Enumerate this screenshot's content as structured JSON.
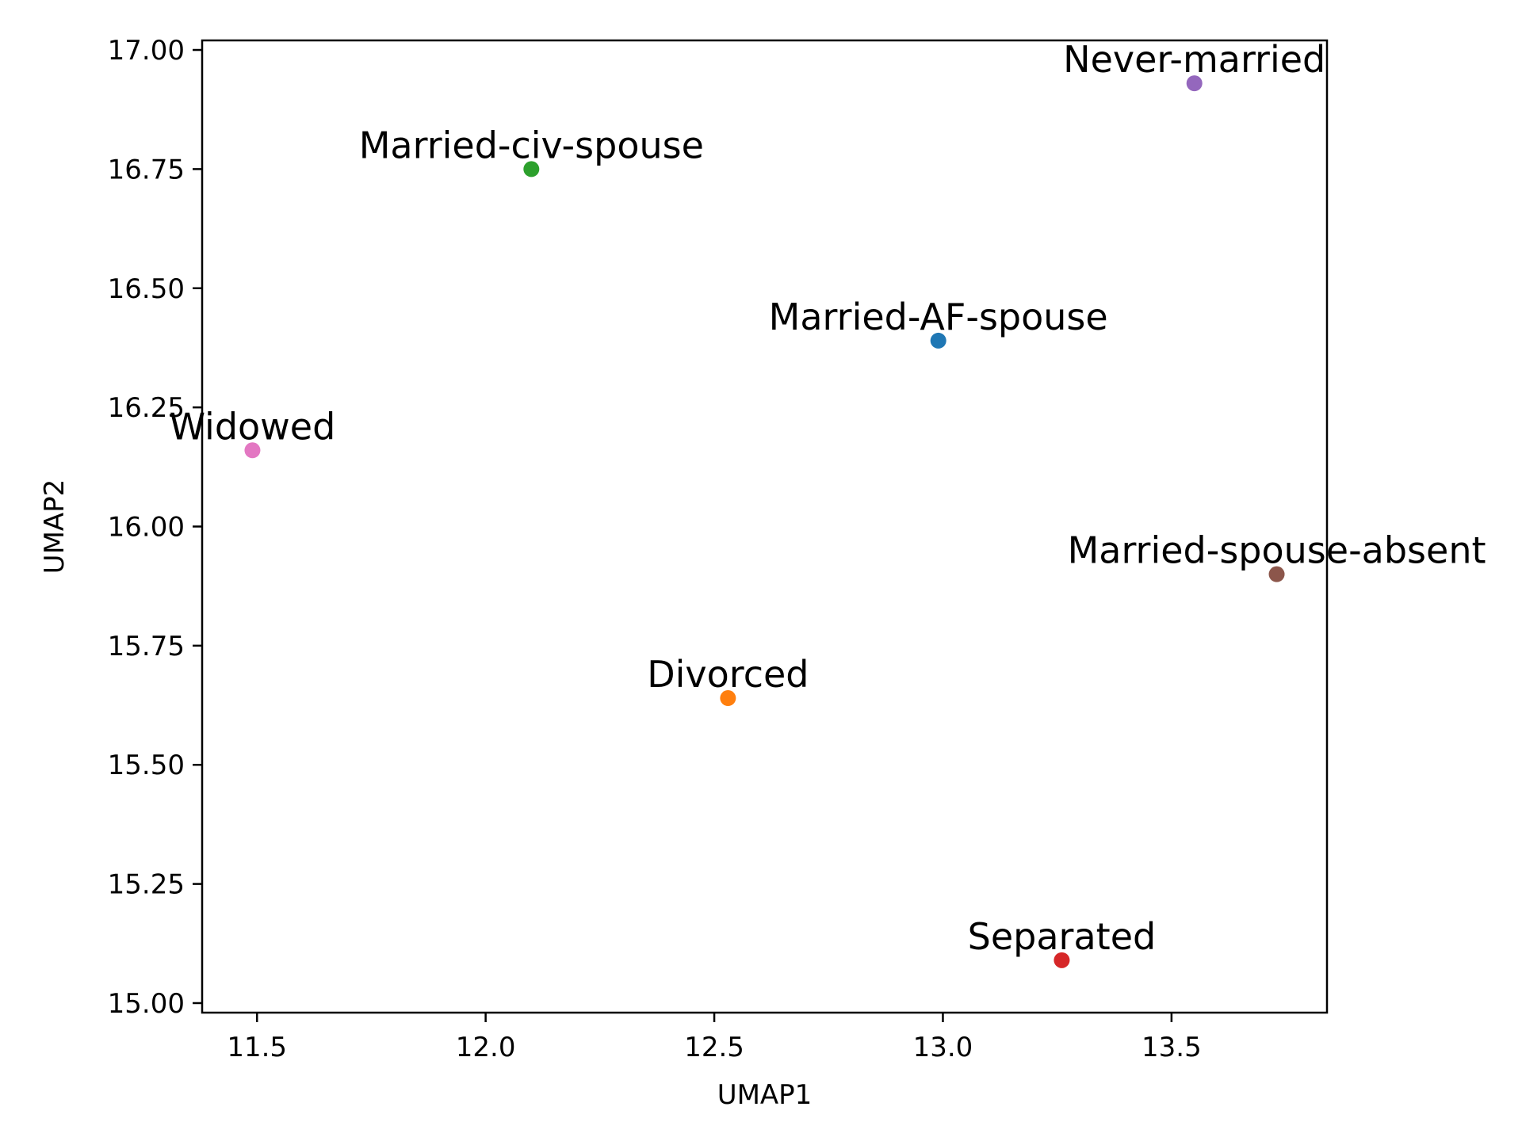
{
  "chart_data": {
    "type": "scatter",
    "title": "",
    "xlabel": "UMAP1",
    "ylabel": "UMAP2",
    "xlim": [
      11.38,
      13.84
    ],
    "ylim": [
      14.98,
      17.02
    ],
    "xticks": [
      11.5,
      12.0,
      12.5,
      13.0,
      13.5
    ],
    "xtick_labels": [
      "11.5",
      "12.0",
      "12.5",
      "13.0",
      "13.5"
    ],
    "yticks": [
      15.0,
      15.25,
      15.5,
      15.75,
      16.0,
      16.25,
      16.5,
      16.75,
      17.0
    ],
    "ytick_labels": [
      "15.00",
      "15.25",
      "15.50",
      "15.75",
      "16.00",
      "16.25",
      "16.50",
      "16.75",
      "17.00"
    ],
    "grid": false,
    "legend": "none",
    "points": [
      {
        "label": "Married-AF-spouse",
        "x": 12.99,
        "y": 16.39,
        "color": "#1f77b4"
      },
      {
        "label": "Divorced",
        "x": 12.53,
        "y": 15.64,
        "color": "#ff7f0e"
      },
      {
        "label": "Married-civ-spouse",
        "x": 12.1,
        "y": 16.75,
        "color": "#2ca02c"
      },
      {
        "label": "Separated",
        "x": 13.26,
        "y": 15.09,
        "color": "#d62728"
      },
      {
        "label": "Never-married",
        "x": 13.55,
        "y": 16.93,
        "color": "#9467bd"
      },
      {
        "label": "Married-spouse-absent",
        "x": 13.73,
        "y": 15.9,
        "color": "#8c564b"
      },
      {
        "label": "Widowed",
        "x": 11.49,
        "y": 16.16,
        "color": "#e377c2"
      }
    ]
  }
}
